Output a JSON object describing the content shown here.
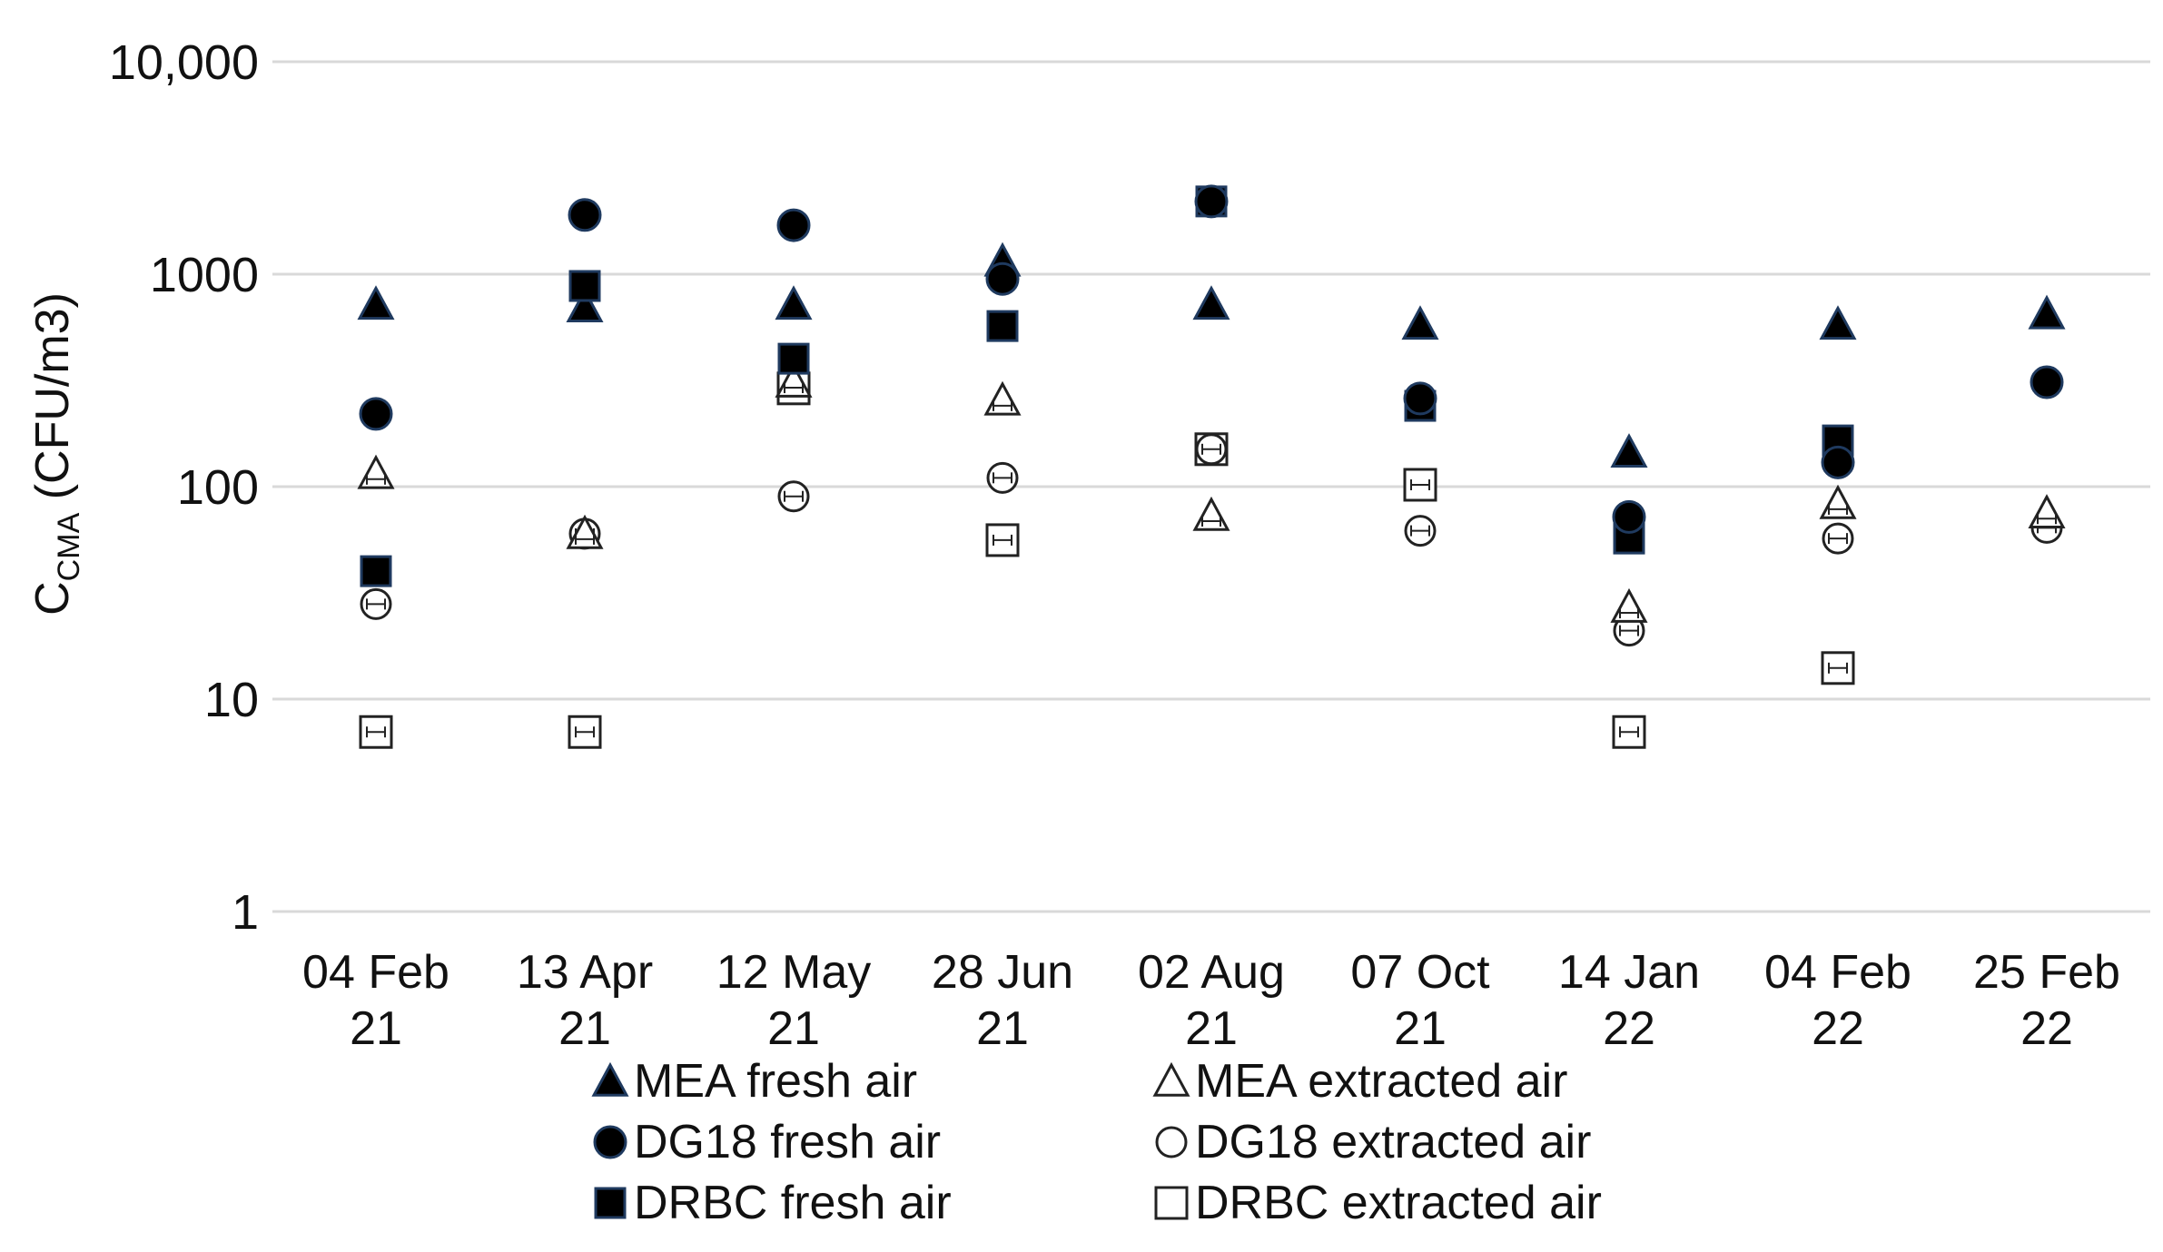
{
  "chart_data": {
    "type": "scatter",
    "title": "",
    "xlabel": "",
    "ylabel": "C",
    "ylabel_subscript": "CMA",
    "ylabel_units": " (CFU/m3)",
    "yscale": "log",
    "ylim": [
      1,
      10000
    ],
    "yticks": [
      1,
      10,
      100,
      1000,
      10000
    ],
    "ytick_labels": [
      "1",
      "10",
      "100",
      "1000",
      "10,000"
    ],
    "categories": [
      [
        "04 Feb",
        "21"
      ],
      [
        "13 Apr",
        "21"
      ],
      [
        "12 May",
        "21"
      ],
      [
        "28 Jun",
        "21"
      ],
      [
        "02 Aug",
        "21"
      ],
      [
        "07 Oct",
        "21"
      ],
      [
        "14 Jan",
        "22"
      ],
      [
        "04 Feb",
        "22"
      ],
      [
        "25 Feb",
        "22"
      ]
    ],
    "legend_position": "bottom",
    "series": [
      {
        "name": "MEA fresh air",
        "marker": "triangle",
        "filled": true,
        "values": [
          720,
          700,
          720,
          1150,
          720,
          580,
          145,
          580,
          650
        ]
      },
      {
        "name": "DG18 fresh air",
        "marker": "circle",
        "filled": true,
        "values": [
          220,
          1900,
          1700,
          950,
          2200,
          260,
          72,
          130,
          310
        ]
      },
      {
        "name": "DRBC fresh air",
        "marker": "square",
        "filled": true,
        "values": [
          40,
          880,
          400,
          570,
          2200,
          240,
          57,
          165,
          null
        ]
      },
      {
        "name": "MEA extracted air",
        "marker": "triangle",
        "filled": false,
        "values": [
          115,
          60,
          310,
          255,
          73,
          null,
          27,
          83,
          75
        ]
      },
      {
        "name": "DG18 extracted air",
        "marker": "circle",
        "filled": false,
        "values": [
          28,
          60,
          90,
          110,
          150,
          62,
          21,
          57,
          64
        ]
      },
      {
        "name": "DRBC extracted air",
        "marker": "square",
        "filled": false,
        "values": [
          7,
          7,
          290,
          56,
          150,
          102,
          7,
          14,
          null
        ]
      }
    ],
    "colors": {
      "fill": "#000000",
      "edge_fresh": "#1f3a5f",
      "edge_open": "#222222",
      "grid": "#d9d9d9"
    }
  }
}
